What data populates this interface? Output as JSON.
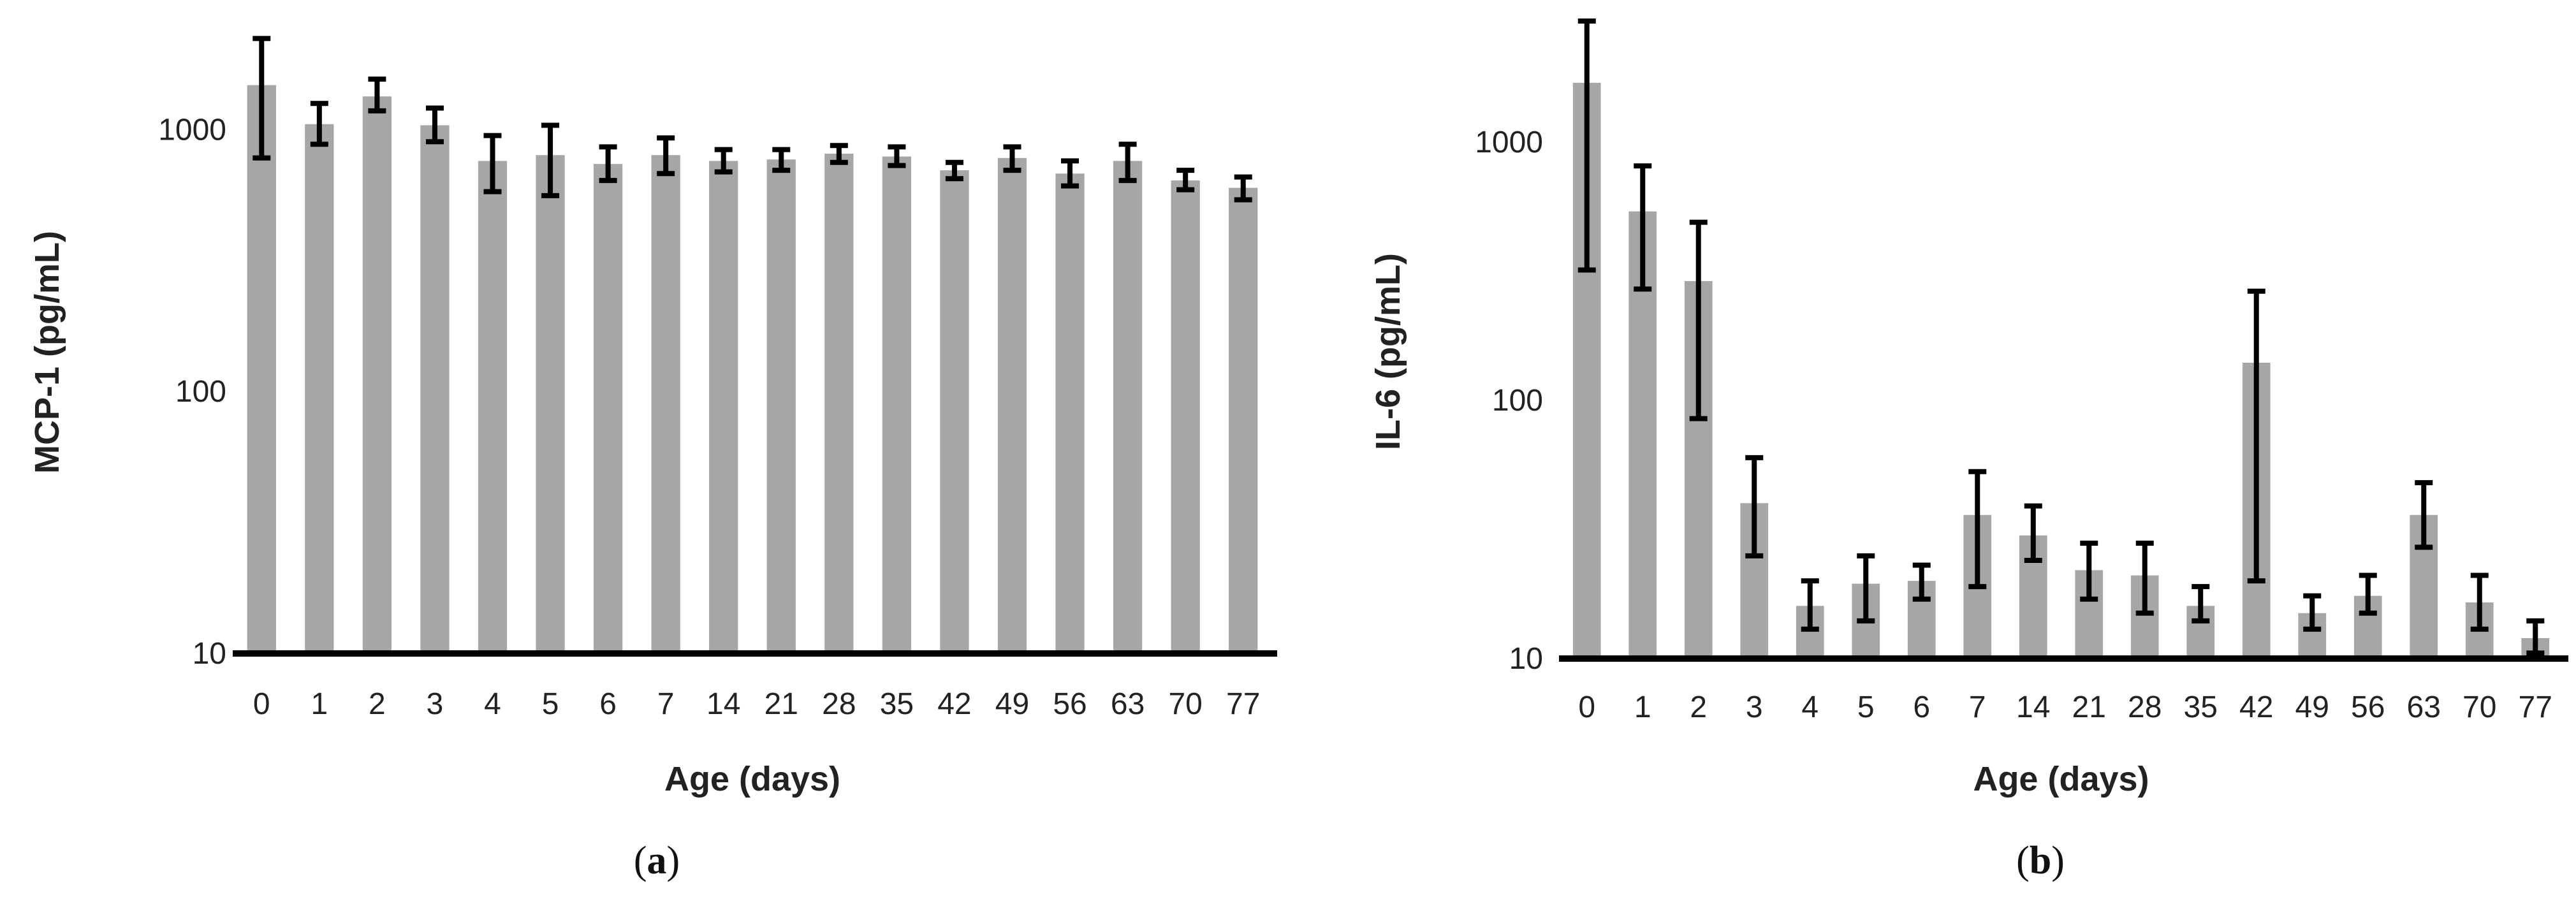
{
  "chart_data": [
    {
      "panel_label": "a",
      "type": "bar",
      "ylabel": "MCP-1 (pg/mL)",
      "xlabel": "Age (days)",
      "y_scale": "log",
      "ylim": [
        10,
        2500
      ],
      "yticks": [
        10,
        100,
        1000
      ],
      "categories": [
        "0",
        "1",
        "2",
        "3",
        "4",
        "5",
        "6",
        "7",
        "14",
        "21",
        "28",
        "35",
        "42",
        "49",
        "56",
        "63",
        "70",
        "77"
      ],
      "values": [
        1480,
        1050,
        1340,
        1040,
        760,
        800,
        740,
        800,
        760,
        770,
        810,
        790,
        700,
        780,
        680,
        760,
        640,
        600
      ],
      "error_low": [
        780,
        880,
        1180,
        900,
        580,
        560,
        640,
        680,
        690,
        700,
        750,
        730,
        650,
        700,
        610,
        640,
        590,
        540
      ],
      "error_high": [
        2230,
        1260,
        1560,
        1210,
        950,
        1040,
        860,
        930,
        840,
        840,
        870,
        860,
        750,
        860,
        760,
        880,
        700,
        660
      ],
      "bar_color": "#a6a6a6",
      "error_color": "#000000"
    },
    {
      "panel_label": "b",
      "type": "bar",
      "ylabel": "IL-6 (pg/mL)",
      "xlabel": "Age (days)",
      "y_scale": "log",
      "ylim": [
        10,
        3000
      ],
      "yticks": [
        10,
        100,
        1000
      ],
      "categories": [
        "0",
        "1",
        "2",
        "3",
        "4",
        "5",
        "6",
        "7",
        "14",
        "21",
        "28",
        "35",
        "42",
        "49",
        "56",
        "63",
        "70",
        "77"
      ],
      "values": [
        1700,
        540,
        290,
        40,
        16,
        19.5,
        20,
        36,
        30,
        22,
        21,
        16,
        140,
        15,
        17.5,
        36,
        16.5,
        12
      ],
      "error_low": [
        320,
        270,
        85,
        25,
        13,
        14,
        17,
        19,
        24,
        17,
        15,
        14,
        20,
        13,
        15,
        27,
        13,
        10.5
      ],
      "error_high": [
        2950,
        810,
        490,
        60,
        20,
        25,
        23,
        53,
        39,
        28,
        28,
        19,
        265,
        17.5,
        21,
        48,
        21,
        14
      ],
      "bar_color": "#a6a6a6",
      "error_color": "#000000"
    }
  ]
}
